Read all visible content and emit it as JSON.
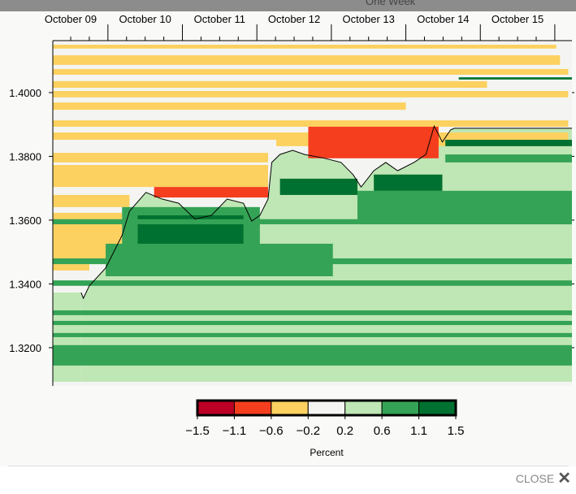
{
  "topbar": {
    "label": "One Week"
  },
  "close_label": "CLOSE",
  "chart_data": {
    "type": "heatmap",
    "title": "",
    "x_unit": "days since October 09 00:00",
    "xlim": [
      0.26,
      7.23
    ],
    "ylim": [
      1.308,
      1.4163
    ],
    "x_ticks": [
      {
        "pos": 0.5,
        "label": "October 09"
      },
      {
        "pos": 1.5,
        "label": "October 10"
      },
      {
        "pos": 2.5,
        "label": "October 11"
      },
      {
        "pos": 3.5,
        "label": "October 12"
      },
      {
        "pos": 4.5,
        "label": "October 13"
      },
      {
        "pos": 5.5,
        "label": "October 14"
      },
      {
        "pos": 6.5,
        "label": "October 15"
      }
    ],
    "y_ticks": [
      {
        "value": 1.4,
        "label": "1.4000"
      },
      {
        "value": 1.38,
        "label": "1.3800"
      },
      {
        "value": 1.36,
        "label": "1.3600"
      },
      {
        "value": 1.34,
        "label": "1.3400"
      },
      {
        "value": 1.32,
        "label": "1.3200"
      }
    ],
    "colorbar": {
      "label": "Percent",
      "breaks": [
        "-1.5",
        "-1.1",
        "-0.6",
        "-0.2",
        "0.2",
        "0.6",
        "1.1",
        "1.5"
      ],
      "colors": [
        "#bd0026",
        "#f53e1e",
        "#fcd160",
        "#f4f5f2",
        "#bfe6b5",
        "#35a355",
        "#007130"
      ]
    },
    "price_line": [
      [
        0.64,
        1.3373
      ],
      [
        0.67,
        1.3355
      ],
      [
        0.75,
        1.3394
      ],
      [
        0.97,
        1.345
      ],
      [
        1.19,
        1.3552
      ],
      [
        1.29,
        1.3628
      ],
      [
        1.51,
        1.3687
      ],
      [
        1.73,
        1.3666
      ],
      [
        1.95,
        1.3653
      ],
      [
        2.17,
        1.3603
      ],
      [
        2.39,
        1.3615
      ],
      [
        2.6,
        1.3666
      ],
      [
        2.82,
        1.3653
      ],
      [
        2.93,
        1.3597
      ],
      [
        3.04,
        1.3615
      ],
      [
        3.15,
        1.3666
      ],
      [
        3.2,
        1.3781
      ],
      [
        3.31,
        1.3806
      ],
      [
        3.48,
        1.3819
      ],
      [
        3.64,
        1.3806
      ],
      [
        3.91,
        1.3794
      ],
      [
        4.13,
        1.3781
      ],
      [
        4.29,
        1.3743
      ],
      [
        4.4,
        1.3704
      ],
      [
        4.57,
        1.3755
      ],
      [
        4.73,
        1.3781
      ],
      [
        4.89,
        1.3755
      ],
      [
        5.11,
        1.3781
      ],
      [
        5.27,
        1.3806
      ],
      [
        5.38,
        1.3895
      ],
      [
        5.49,
        1.3845
      ],
      [
        5.6,
        1.3883
      ],
      [
        5.65,
        1.3888
      ],
      [
        7.23,
        1.3888
      ]
    ],
    "base_level_below_price": 4,
    "base_level_bottom": 1.3093,
    "bands": [
      {
        "x": [
          0.26,
          7.02
        ],
        "y": [
          1.4138,
          1.415
        ],
        "level": 2
      },
      {
        "x": [
          0.26,
          7.07
        ],
        "y": [
          1.4087,
          1.4117
        ],
        "level": 2
      },
      {
        "x": [
          0.26,
          7.18
        ],
        "y": [
          1.4056,
          1.4074
        ],
        "level": 2
      },
      {
        "x": [
          0.26,
          6.09
        ],
        "y": [
          1.4015,
          1.4036
        ],
        "level": 2
      },
      {
        "x": [
          0.26,
          7.18
        ],
        "y": [
          1.3985,
          1.4005
        ],
        "level": 2
      },
      {
        "x": [
          0.26,
          5.0
        ],
        "y": [
          1.3946,
          1.3969
        ],
        "level": 2
      },
      {
        "x": [
          0.26,
          7.18
        ],
        "y": [
          1.3893,
          1.3913
        ],
        "level": 2
      },
      {
        "x": [
          0.26,
          3.26
        ],
        "y": [
          1.3852,
          1.3875
        ],
        "level": 2
      },
      {
        "x": [
          3.26,
          7.18
        ],
        "y": [
          1.3832,
          1.3875
        ],
        "level": 2
      },
      {
        "x": [
          0.26,
          3.15
        ],
        "y": [
          1.3781,
          1.3811
        ],
        "level": 2
      },
      {
        "x": [
          0.26,
          3.15
        ],
        "y": [
          1.3704,
          1.3773
        ],
        "level": 2
      },
      {
        "x": [
          0.26,
          1.29
        ],
        "y": [
          1.3641,
          1.3679
        ],
        "level": 2
      },
      {
        "x": [
          0.26,
          1.19
        ],
        "y": [
          1.3475,
          1.3623
        ],
        "level": 2
      },
      {
        "x": [
          0.26,
          0.75
        ],
        "y": [
          1.3442,
          1.3462
        ],
        "level": 2
      },
      {
        "x": [
          1.62,
          3.15
        ],
        "y": [
          1.3671,
          1.3704
        ],
        "level": 1
      },
      {
        "x": [
          3.69,
          5.44
        ],
        "y": [
          1.3794,
          1.3893
        ],
        "level": 1
      },
      {
        "x": [
          0.97,
          4.02
        ],
        "y": [
          1.3424,
          1.3526
        ],
        "level": 5
      },
      {
        "x": [
          1.19,
          3.04
        ],
        "y": [
          1.3501,
          1.3641
        ],
        "level": 5
      },
      {
        "x": [
          1.4,
          2.82
        ],
        "y": [
          1.3526,
          1.3615
        ],
        "level": 6
      },
      {
        "x": [
          3.31,
          4.35
        ],
        "y": [
          1.3679,
          1.373
        ],
        "level": 6
      },
      {
        "x": [
          4.35,
          7.23
        ],
        "y": [
          1.3587,
          1.3692
        ],
        "level": 5
      },
      {
        "x": [
          4.57,
          5.49
        ],
        "y": [
          1.3692,
          1.3743
        ],
        "level": 6
      },
      {
        "x": [
          5.53,
          7.23
        ],
        "y": [
          1.3832,
          1.3852
        ],
        "level": 6
      },
      {
        "x": [
          5.71,
          7.23
        ],
        "y": [
          1.4041,
          1.4048
        ],
        "level": 6
      },
      {
        "x": [
          5.53,
          7.23
        ],
        "y": [
          1.3781,
          1.3806
        ],
        "level": 5
      },
      {
        "x": [
          0.26,
          7.23
        ],
        "y": [
          1.3587,
          1.3603
        ],
        "level": 5
      },
      {
        "x": [
          0.26,
          7.23
        ],
        "y": [
          1.3462,
          1.348
        ],
        "level": 5
      },
      {
        "x": [
          0.26,
          7.23
        ],
        "y": [
          1.3394,
          1.3411
        ],
        "level": 5
      },
      {
        "x": [
          0.26,
          7.23
        ],
        "y": [
          1.3302,
          1.3317
        ],
        "level": 5
      },
      {
        "x": [
          0.26,
          7.23
        ],
        "y": [
          1.3271,
          1.3284
        ],
        "level": 5
      },
      {
        "x": [
          0.26,
          7.23
        ],
        "y": [
          1.3233,
          1.3246
        ],
        "level": 5
      },
      {
        "x": [
          0.26,
          7.23
        ],
        "y": [
          1.3144,
          1.3208
        ],
        "level": 5
      }
    ]
  }
}
